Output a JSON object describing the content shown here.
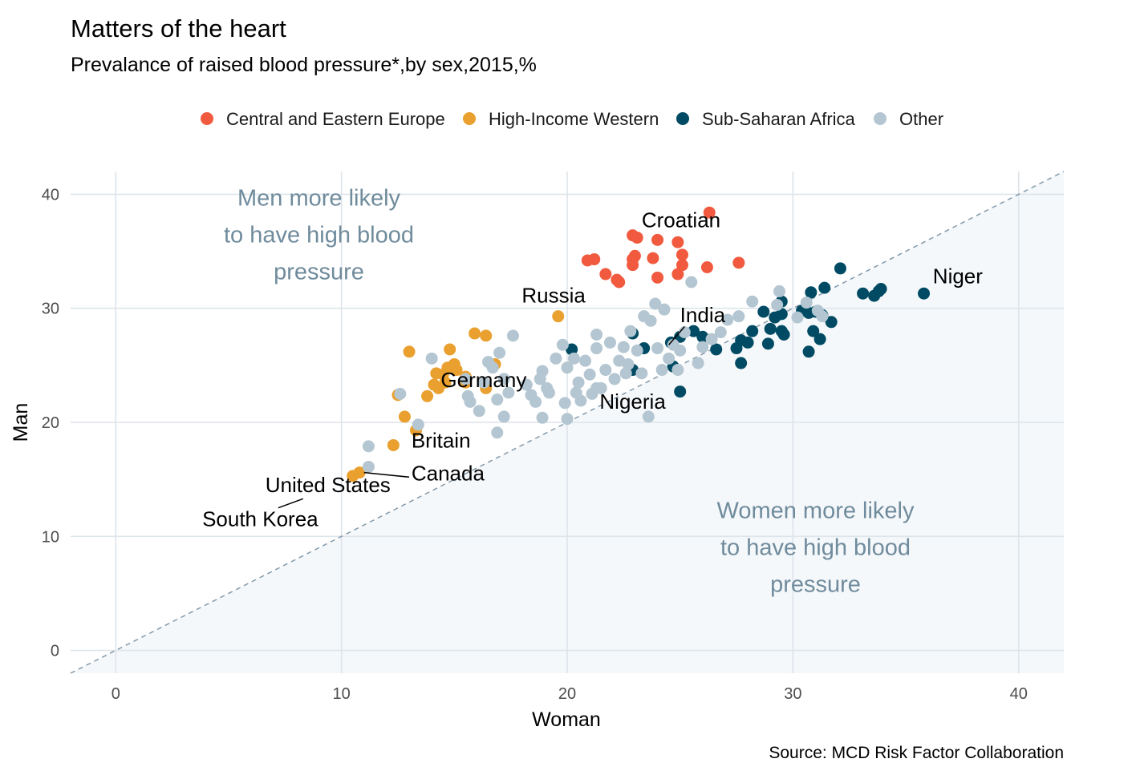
{
  "chart_data": {
    "type": "scatter",
    "title": "Matters of the heart",
    "subtitle": "Prevalance of raised blood pressure*,by sex,2015,%",
    "xlabel": "Woman",
    "ylabel": "Man",
    "xlim": [
      -2,
      42
    ],
    "ylim": [
      -2,
      42
    ],
    "x_ticks": [
      "0",
      "10",
      "20",
      "30",
      "40"
    ],
    "y_ticks": [
      "0",
      "10",
      "20",
      "30",
      "40"
    ],
    "grid": true,
    "legend_position": "top",
    "reference_line": "y = x",
    "source": "Source: MCD Risk Factor Collaboration",
    "annotations": [
      {
        "lines": [
          "Men more likely",
          "to have high blood",
          "pressure"
        ],
        "x": 9,
        "y": 39
      },
      {
        "lines": [
          "Women more likely",
          "to have high blood",
          "pressure"
        ],
        "x": 31,
        "y": 11.6
      }
    ],
    "series": [
      {
        "name": "Central and Eastern Europe",
        "color": "#f15a3f",
        "points": [
          [
            20.9,
            34.2
          ],
          [
            21.2,
            34.3
          ],
          [
            21.7,
            33.0
          ],
          [
            22.2,
            32.5
          ],
          [
            22.3,
            32.3
          ],
          [
            22.9,
            34.3
          ],
          [
            22.9,
            33.8
          ],
          [
            23.0,
            34.6
          ],
          [
            22.9,
            36.4
          ],
          [
            23.1,
            36.2
          ],
          [
            23.8,
            34.4
          ],
          [
            24.0,
            36.0
          ],
          [
            24.0,
            32.7
          ],
          [
            24.9,
            35.8
          ],
          [
            25.1,
            34.7
          ],
          [
            25.1,
            33.8
          ],
          [
            24.9,
            33.0
          ],
          [
            26.2,
            33.6
          ],
          [
            26.3,
            38.4
          ],
          [
            27.6,
            34.0
          ]
        ]
      },
      {
        "name": "High-Income Western",
        "color": "#eaa02e",
        "points": [
          [
            10.5,
            15.3
          ],
          [
            10.8,
            15.6
          ],
          [
            12.3,
            18.0
          ],
          [
            12.5,
            22.4
          ],
          [
            12.8,
            20.5
          ],
          [
            13.0,
            26.2
          ],
          [
            13.3,
            19.3
          ],
          [
            13.8,
            22.3
          ],
          [
            14.1,
            23.3
          ],
          [
            14.2,
            24.3
          ],
          [
            14.3,
            23.0
          ],
          [
            14.5,
            24.2
          ],
          [
            14.6,
            23.5
          ],
          [
            14.7,
            24.8
          ],
          [
            14.8,
            26.4
          ],
          [
            15.0,
            25.1
          ],
          [
            15.1,
            24.6
          ],
          [
            15.5,
            24.0
          ],
          [
            15.5,
            23.5
          ],
          [
            15.9,
            27.8
          ],
          [
            16.4,
            27.6
          ],
          [
            16.4,
            23.0
          ],
          [
            16.8,
            25.1
          ],
          [
            19.6,
            29.3
          ]
        ]
      },
      {
        "name": "Sub-Saharan Africa",
        "color": "#004b63",
        "points": [
          [
            20.2,
            26.4
          ],
          [
            22.9,
            24.6
          ],
          [
            22.9,
            27.8
          ],
          [
            23.4,
            26.5
          ],
          [
            24.6,
            27.0
          ],
          [
            24.7,
            24.9
          ],
          [
            25.0,
            27.5
          ],
          [
            25.0,
            22.7
          ],
          [
            25.6,
            28.0
          ],
          [
            26.0,
            27.5
          ],
          [
            26.6,
            26.4
          ],
          [
            27.5,
            26.5
          ],
          [
            27.7,
            25.2
          ],
          [
            27.7,
            27.2
          ],
          [
            28.0,
            27.0
          ],
          [
            28.2,
            28.0
          ],
          [
            28.7,
            29.7
          ],
          [
            28.9,
            26.9
          ],
          [
            29.0,
            28.2
          ],
          [
            29.2,
            29.2
          ],
          [
            29.5,
            28.0
          ],
          [
            29.5,
            30.6
          ],
          [
            29.5,
            29.5
          ],
          [
            29.6,
            27.7
          ],
          [
            30.4,
            29.8
          ],
          [
            30.7,
            29.6
          ],
          [
            30.7,
            26.2
          ],
          [
            30.8,
            31.4
          ],
          [
            30.9,
            28.0
          ],
          [
            31.0,
            29.7
          ],
          [
            31.2,
            27.3
          ],
          [
            31.3,
            29.4
          ],
          [
            31.4,
            31.8
          ],
          [
            31.7,
            28.8
          ],
          [
            32.1,
            33.5
          ],
          [
            33.1,
            31.3
          ],
          [
            33.6,
            31.1
          ],
          [
            33.8,
            31.5
          ],
          [
            33.9,
            31.7
          ],
          [
            35.8,
            31.3
          ]
        ]
      },
      {
        "name": "Other",
        "color": "#b4c6d1",
        "points": [
          [
            11.2,
            17.9
          ],
          [
            11.2,
            16.1
          ],
          [
            12.6,
            22.5
          ],
          [
            13.4,
            19.8
          ],
          [
            14.0,
            25.6
          ],
          [
            15.5,
            23.8
          ],
          [
            15.6,
            22.3
          ],
          [
            15.7,
            21.8
          ],
          [
            16.1,
            21.0
          ],
          [
            16.3,
            23.5
          ],
          [
            16.5,
            25.3
          ],
          [
            16.7,
            24.8
          ],
          [
            16.9,
            19.1
          ],
          [
            16.9,
            22.0
          ],
          [
            17.0,
            26.1
          ],
          [
            17.2,
            20.5
          ],
          [
            17.2,
            23.8
          ],
          [
            17.4,
            22.6
          ],
          [
            17.6,
            27.6
          ],
          [
            18.2,
            23.3
          ],
          [
            18.4,
            22.4
          ],
          [
            18.6,
            21.8
          ],
          [
            18.8,
            23.8
          ],
          [
            18.9,
            24.5
          ],
          [
            18.9,
            20.4
          ],
          [
            19.1,
            23.0
          ],
          [
            19.2,
            22.6
          ],
          [
            19.5,
            25.6
          ],
          [
            19.8,
            26.8
          ],
          [
            19.9,
            21.7
          ],
          [
            20.0,
            24.8
          ],
          [
            20.0,
            20.3
          ],
          [
            20.3,
            25.6
          ],
          [
            20.4,
            22.6
          ],
          [
            20.5,
            23.5
          ],
          [
            20.6,
            21.9
          ],
          [
            20.8,
            25.4
          ],
          [
            21.0,
            24.2
          ],
          [
            21.1,
            22.5
          ],
          [
            21.3,
            26.5
          ],
          [
            21.3,
            27.7
          ],
          [
            21.5,
            23.0
          ],
          [
            21.7,
            24.6
          ],
          [
            21.9,
            27.0
          ],
          [
            22.1,
            23.8
          ],
          [
            22.3,
            25.4
          ],
          [
            22.5,
            26.6
          ],
          [
            22.6,
            24.3
          ],
          [
            22.7,
            25.1
          ],
          [
            22.8,
            28.0
          ],
          [
            23.1,
            26.3
          ],
          [
            23.3,
            24.3
          ],
          [
            23.4,
            29.3
          ],
          [
            23.7,
            28.9
          ],
          [
            23.9,
            30.4
          ],
          [
            24.0,
            26.5
          ],
          [
            24.2,
            24.6
          ],
          [
            24.3,
            29.9
          ],
          [
            24.5,
            25.6
          ],
          [
            24.7,
            26.8
          ],
          [
            24.9,
            24.6
          ],
          [
            25.0,
            26.3
          ],
          [
            25.2,
            27.9
          ],
          [
            25.5,
            32.3
          ],
          [
            25.8,
            25.2
          ],
          [
            26.0,
            26.6
          ],
          [
            26.4,
            27.3
          ],
          [
            26.8,
            27.9
          ],
          [
            27.1,
            29.0
          ],
          [
            27.6,
            29.3
          ],
          [
            28.2,
            30.6
          ],
          [
            29.3,
            30.3
          ],
          [
            29.4,
            31.5
          ],
          [
            30.2,
            29.2
          ],
          [
            30.6,
            30.5
          ],
          [
            31.1,
            29.8
          ],
          [
            31.3,
            29.3
          ],
          [
            23.6,
            20.5
          ],
          [
            21.3,
            23.0
          ]
        ]
      }
    ],
    "labels": [
      {
        "text": "Croatian",
        "x": 23.3,
        "y": 37.1,
        "anchor": "start"
      },
      {
        "text": "Niger",
        "x": 36.2,
        "y": 32.2,
        "anchor": "start"
      },
      {
        "text": "Russia",
        "x": 19.4,
        "y": 30.5,
        "anchor": "middle"
      },
      {
        "text": "India",
        "x": 25.0,
        "y": 28.8,
        "anchor": "start",
        "leader": [
          25.2,
          28.4,
          24.5,
          26.8
        ]
      },
      {
        "text": "Nigeria",
        "x": 22.9,
        "y": 21.2,
        "anchor": "middle"
      },
      {
        "text": "Germany",
        "x": 14.4,
        "y": 23.1,
        "anchor": "start"
      },
      {
        "text": "Britain",
        "x": 13.1,
        "y": 17.8,
        "anchor": "start"
      },
      {
        "text": "Canada",
        "x": 13.1,
        "y": 14.9,
        "anchor": "start",
        "leader": [
          13.0,
          15.2,
          11.0,
          15.6
        ]
      },
      {
        "text": "United States",
        "x": 9.4,
        "y": 13.9,
        "anchor": "middle"
      },
      {
        "text": "South Korea",
        "x": 6.4,
        "y": 10.9,
        "anchor": "middle",
        "leader": [
          7.2,
          12.5,
          8.3,
          13.3
        ]
      }
    ]
  }
}
